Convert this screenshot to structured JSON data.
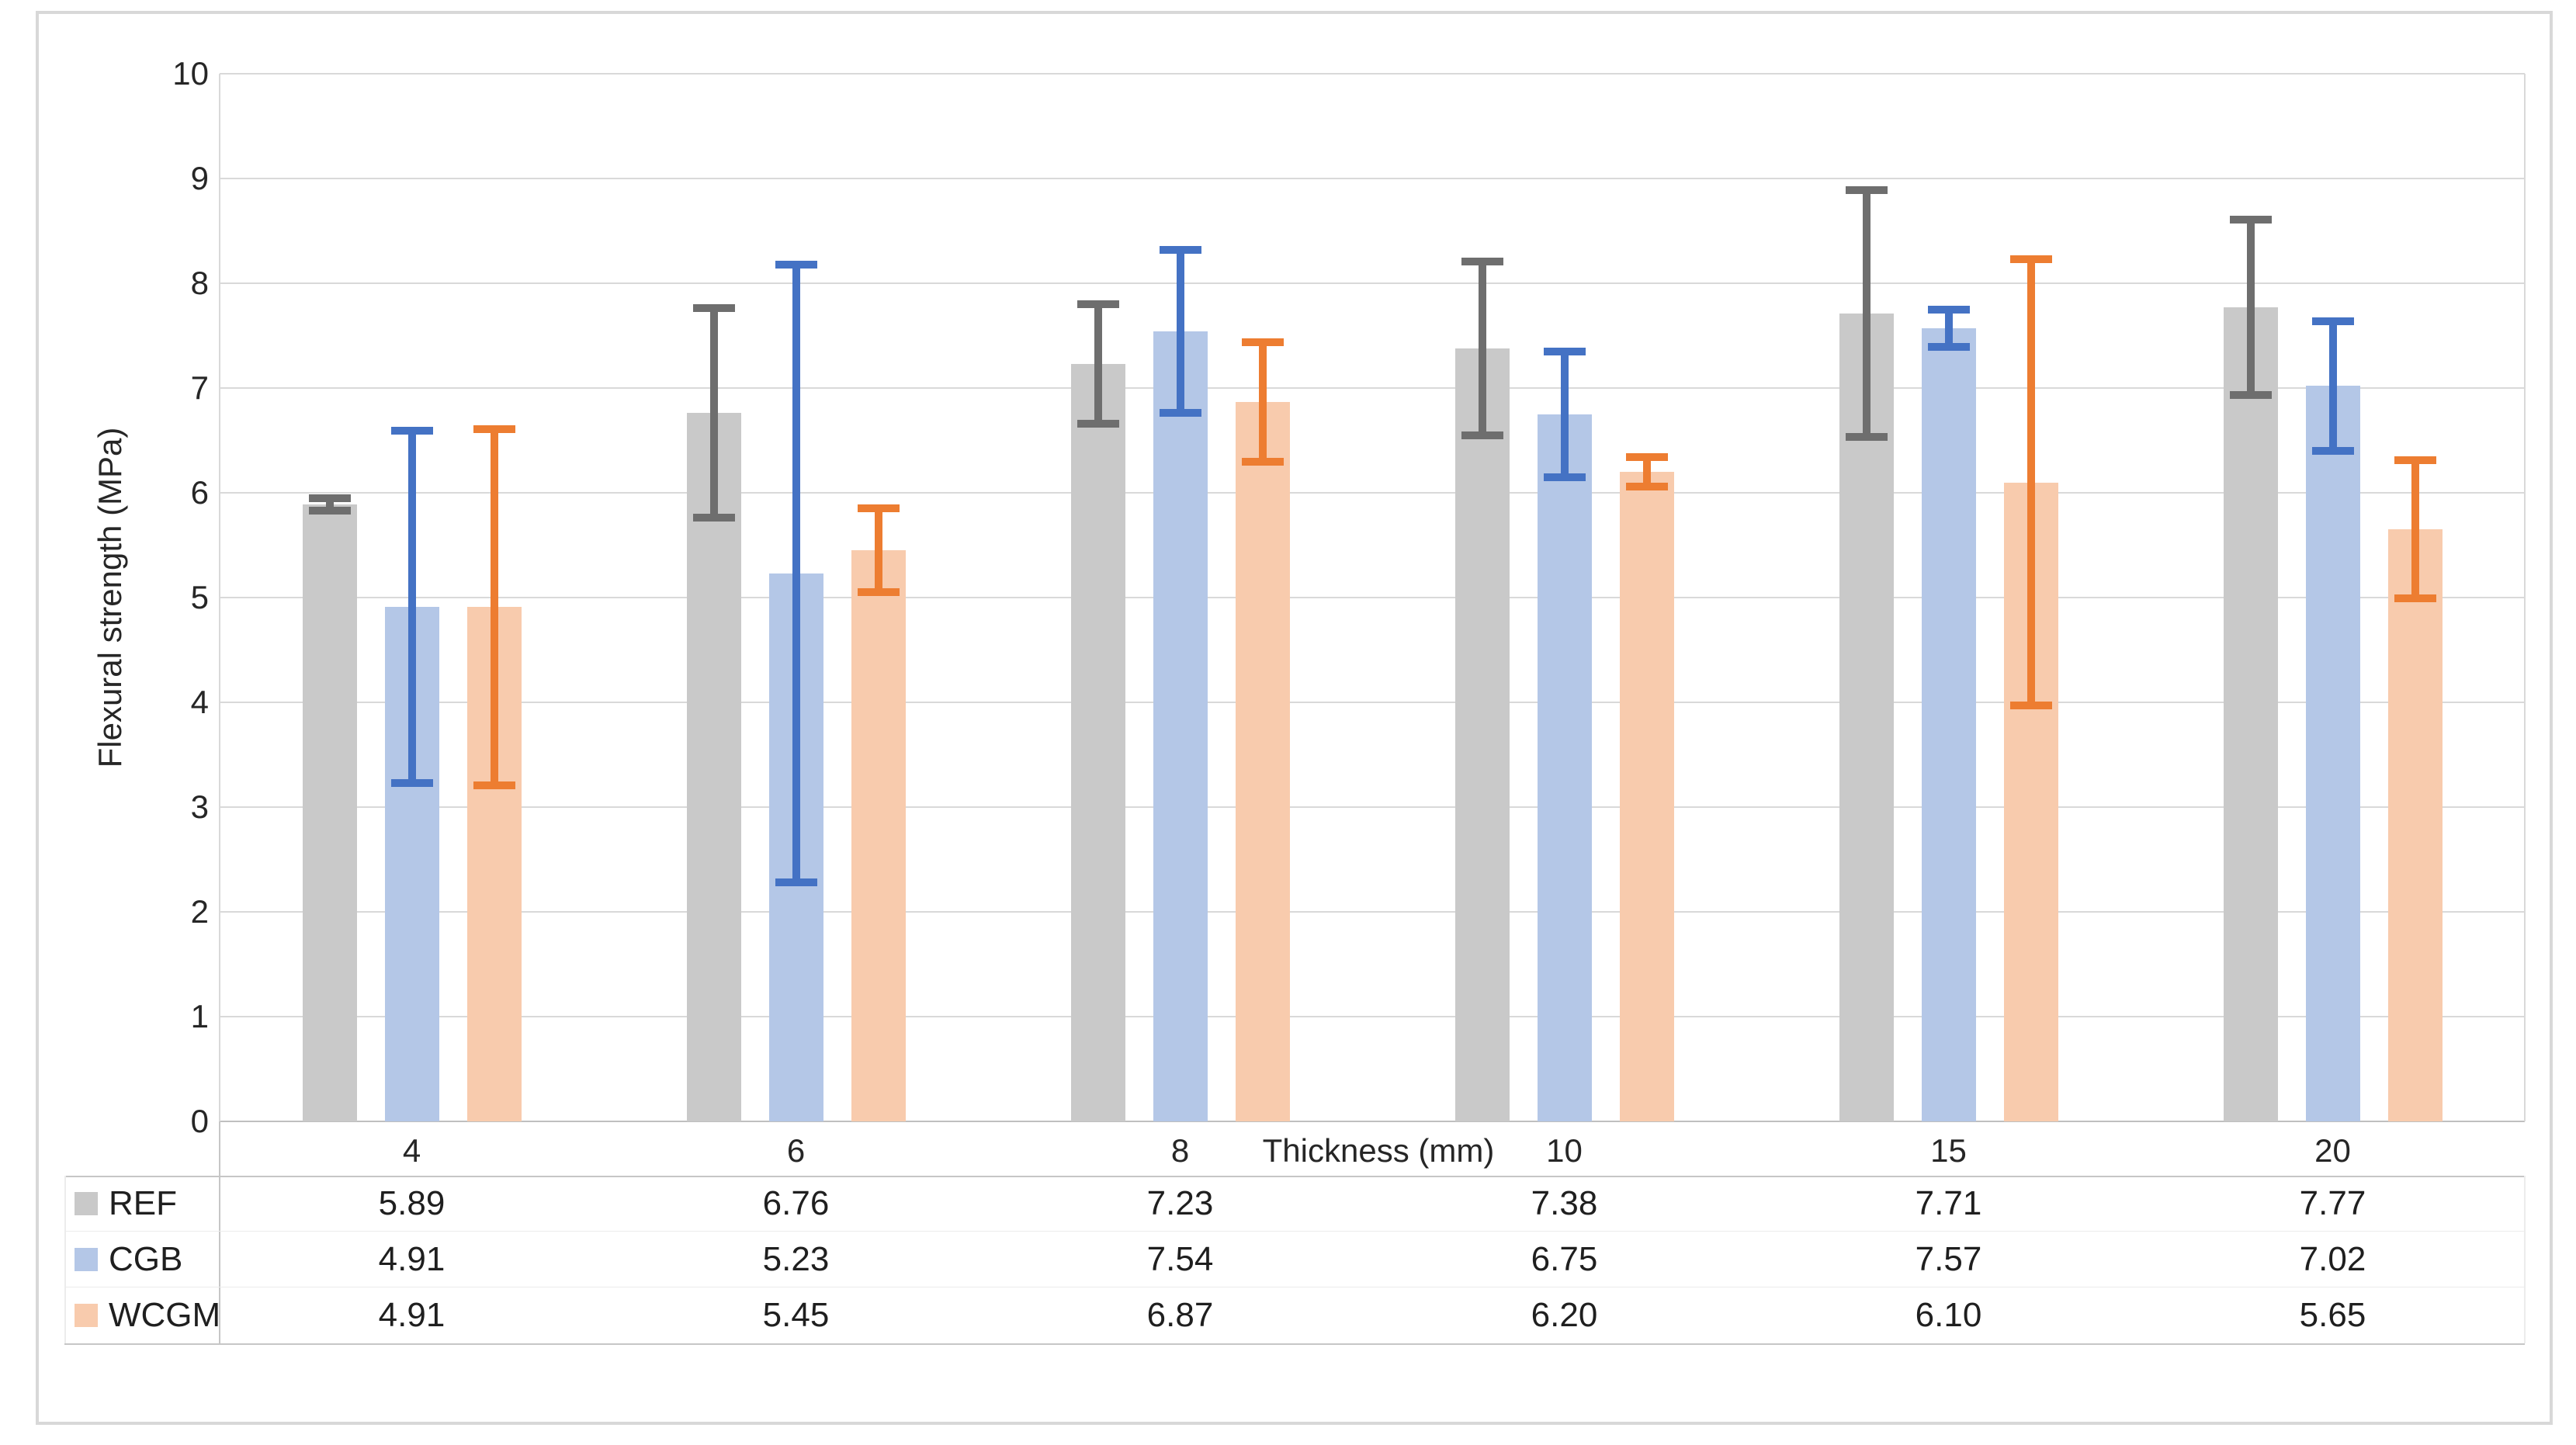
{
  "chart_data": {
    "type": "bar",
    "title": "",
    "xlabel": "Thickness (mm)",
    "ylabel": "Flexural strength (MPa)",
    "ylim": [
      0,
      10
    ],
    "y_ticks": [
      0,
      1,
      2,
      3,
      4,
      5,
      6,
      7,
      8,
      9,
      10
    ],
    "grid": true,
    "legend_position": "table-left",
    "categories": [
      "4",
      "6",
      "8",
      "10",
      "15",
      "20"
    ],
    "series": [
      {
        "name": "REF",
        "bar_color": "#C9C9C9",
        "error_color": "#6E6E6E",
        "values": [
          5.89,
          6.76,
          7.23,
          7.38,
          7.71,
          7.77
        ],
        "errors": [
          0.06,
          1.0,
          0.57,
          0.83,
          1.18,
          0.84
        ],
        "values_display": [
          "5.89",
          "6.76",
          "7.23",
          "7.38",
          "7.71",
          "7.77"
        ]
      },
      {
        "name": "CGB",
        "bar_color": "#B4C7E7",
        "error_color": "#4472C4",
        "values": [
          4.91,
          5.23,
          7.54,
          6.75,
          7.57,
          7.02
        ],
        "errors": [
          1.68,
          2.95,
          0.78,
          0.6,
          0.18,
          0.62
        ],
        "values_display": [
          "4.91",
          "5.23",
          "7.54",
          "6.75",
          "7.57",
          "7.02"
        ]
      },
      {
        "name": "WCGM",
        "bar_color": "#F8CBAD",
        "error_color": "#ED7D31",
        "values": [
          4.91,
          5.45,
          6.87,
          6.2,
          6.1,
          5.65
        ],
        "errors": [
          1.7,
          0.4,
          0.57,
          0.14,
          2.13,
          0.66
        ],
        "values_display": [
          "4.91",
          "5.45",
          "6.87",
          "6.20",
          "6.10",
          "5.65"
        ]
      }
    ]
  }
}
